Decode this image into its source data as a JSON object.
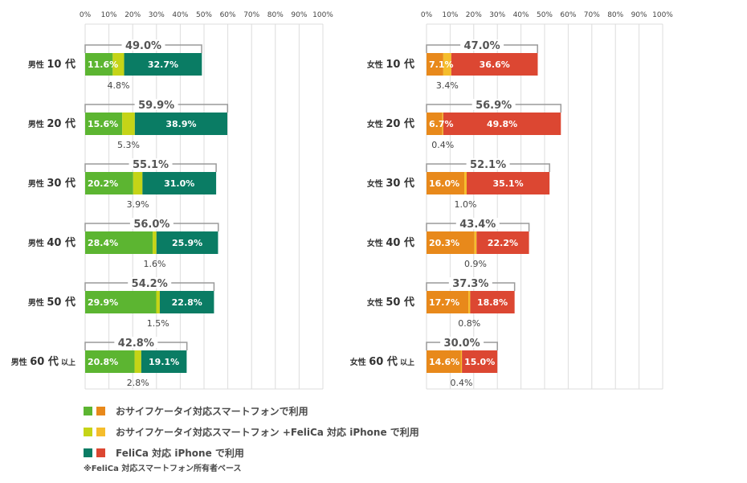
{
  "chart_data": [
    {
      "type": "bar",
      "stacked": true,
      "orientation": "horizontal",
      "xlim": [
        0,
        100
      ],
      "grid": true,
      "x_ticks": [
        "0%",
        "10%",
        "20%",
        "30%",
        "40%",
        "50%",
        "60%",
        "70%",
        "80%",
        "90%",
        "100%"
      ],
      "colors": [
        "#5cb531",
        "#c5d417",
        "#0a7c64"
      ],
      "categories": [
        {
          "group": "男性",
          "age": "10 代",
          "suffix": ""
        },
        {
          "group": "男性",
          "age": "20 代",
          "suffix": ""
        },
        {
          "group": "男性",
          "age": "30 代",
          "suffix": ""
        },
        {
          "group": "男性",
          "age": "40 代",
          "suffix": ""
        },
        {
          "group": "男性",
          "age": "50 代",
          "suffix": ""
        },
        {
          "group": "男性",
          "age": "60 代",
          "suffix": "以上"
        }
      ],
      "series": [
        {
          "values": [
            11.6,
            15.6,
            20.2,
            28.4,
            29.9,
            20.8
          ]
        },
        {
          "values": [
            4.8,
            5.3,
            3.9,
            1.6,
            1.5,
            2.8
          ]
        },
        {
          "values": [
            32.7,
            38.9,
            31.0,
            25.9,
            22.8,
            19.1
          ]
        }
      ],
      "totals": [
        49.0,
        59.9,
        55.1,
        56.0,
        54.2,
        42.8
      ]
    },
    {
      "type": "bar",
      "stacked": true,
      "orientation": "horizontal",
      "xlim": [
        0,
        100
      ],
      "grid": true,
      "x_ticks": [
        "0%",
        "10%",
        "20%",
        "30%",
        "40%",
        "50%",
        "60%",
        "70%",
        "80%",
        "90%",
        "100%"
      ],
      "colors": [
        "#e8891b",
        "#f5bd2c",
        "#dc4732"
      ],
      "categories": [
        {
          "group": "女性",
          "age": "10 代",
          "suffix": ""
        },
        {
          "group": "女性",
          "age": "20 代",
          "suffix": ""
        },
        {
          "group": "女性",
          "age": "30 代",
          "suffix": ""
        },
        {
          "group": "女性",
          "age": "40 代",
          "suffix": ""
        },
        {
          "group": "女性",
          "age": "50 代",
          "suffix": ""
        },
        {
          "group": "女性",
          "age": "60 代",
          "suffix": "以上"
        }
      ],
      "series": [
        {
          "values": [
            7.1,
            6.7,
            16.0,
            20.3,
            17.7,
            14.6
          ]
        },
        {
          "values": [
            3.4,
            0.4,
            1.0,
            0.9,
            0.8,
            0.4
          ]
        },
        {
          "values": [
            36.6,
            49.8,
            35.1,
            22.2,
            18.8,
            15.0
          ]
        }
      ],
      "totals": [
        47.0,
        56.9,
        52.1,
        43.4,
        37.3,
        30.0
      ]
    }
  ],
  "legend": {
    "position": "bottom-left",
    "items": [
      {
        "label": "おサイフケータイ対応スマートフォンで利用",
        "colors": [
          "#5cb531",
          "#e8891b"
        ]
      },
      {
        "label": "おサイフケータイ対応スマートフォン +FeliCa 対応 iPhone で利用",
        "colors": [
          "#c5d417",
          "#f5bd2c"
        ]
      },
      {
        "label": "FeliCa 対応 iPhone で利用",
        "colors": [
          "#0a7c64",
          "#dc4732"
        ]
      }
    ]
  },
  "note": "※FeliCa 対応スマートフォン所有者ベース"
}
